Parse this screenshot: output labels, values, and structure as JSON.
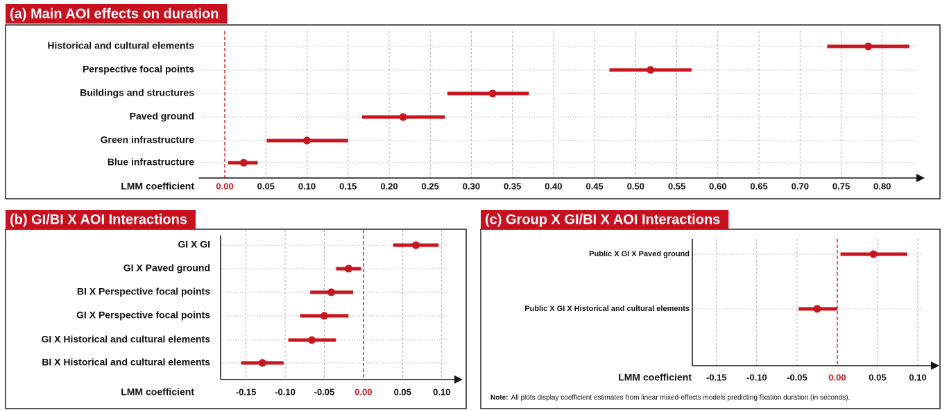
{
  "chart_data": [
    {
      "type": "errorbar",
      "title": "(a) Main AOI effects on duration",
      "xlabel": "LMM coefficient",
      "categories": [
        "Historical and cultural elements",
        "Perspective focal points",
        "Buildings and structures",
        "Paved ground",
        "Green infrastructure",
        "Blue infrastructure"
      ],
      "values": [
        0.783,
        0.518,
        0.326,
        0.217,
        0.1,
        0.023
      ],
      "lower": [
        0.733,
        0.468,
        0.271,
        0.167,
        0.051,
        0.004
      ],
      "upper": [
        0.833,
        0.568,
        0.37,
        0.268,
        0.15,
        0.04
      ],
      "color": "#c8151e",
      "grid": true,
      "xlim": [
        -0.03,
        0.85
      ],
      "xticks": [
        {
          "value": 0,
          "label": "0.00"
        },
        0.05,
        {
          "value": 0.1,
          "label": "0.10"
        },
        0.15,
        {
          "value": 0.2,
          "label": "0.20"
        },
        0.25,
        {
          "value": 0.3,
          "label": "0.30"
        },
        0.35,
        {
          "value": 0.4,
          "label": "0.40"
        },
        0.45,
        {
          "value": 0.5,
          "label": "0.50"
        },
        0.55,
        {
          "value": 0.6,
          "label": "0.60"
        },
        0.65,
        {
          "value": 0.7,
          "label": "0.70"
        },
        0.75,
        {
          "value": 0.8,
          "label": "0.80"
        }
      ]
    },
    {
      "type": "errorbar",
      "title": "(b) GI/BI X AOI Interactions",
      "xlabel": "LMM coefficient",
      "categories": [
        "GI X GI",
        "GI X Paved ground",
        "BI X Perspective focal points",
        "GI X Perspective focal points",
        "GI X Historical and cultural elements",
        "BI X Historical and cultural elements"
      ],
      "values": [
        0.067,
        -0.019,
        -0.041,
        -0.05,
        -0.066,
        -0.129
      ],
      "lower": [
        0.038,
        -0.035,
        -0.068,
        -0.081,
        -0.096,
        -0.156
      ],
      "upper": [
        0.096,
        -0.003,
        -0.013,
        -0.019,
        -0.035,
        -0.102
      ],
      "color": "#c8151e",
      "grid": true,
      "xlim": [
        -0.17,
        0.125
      ],
      "xticks": [
        -0.15,
        {
          "value": -0.1,
          "label": "-0.10"
        },
        -0.05,
        {
          "value": 0,
          "label": "0.00"
        },
        0.05,
        {
          "value": 0.1,
          "label": "0.10"
        }
      ]
    },
    {
      "type": "errorbar",
      "title": "(c) Group X GI/BI X AOI Interactions",
      "xlabel": "LMM coefficient",
      "categories": [
        "Public X GI X Paved ground",
        "Public X GI X Historical and cultural elements"
      ],
      "values": [
        0.045,
        -0.025
      ],
      "lower": [
        0.004,
        -0.048
      ],
      "upper": [
        0.087,
        0.0
      ],
      "color": "#c8151e",
      "grid": true,
      "xlim": [
        -0.18,
        0.125
      ],
      "xticks": [
        -0.15,
        {
          "value": -0.1,
          "label": "-0.10"
        },
        -0.05,
        {
          "value": 0,
          "label": "0.00"
        },
        0.05,
        {
          "value": 0.1,
          "label": "0.10"
        }
      ],
      "note_label": "Note:",
      "note": "All plots display coefficient estimates from linear mixed-effects models predicting fixation duration (in seconds)."
    }
  ]
}
